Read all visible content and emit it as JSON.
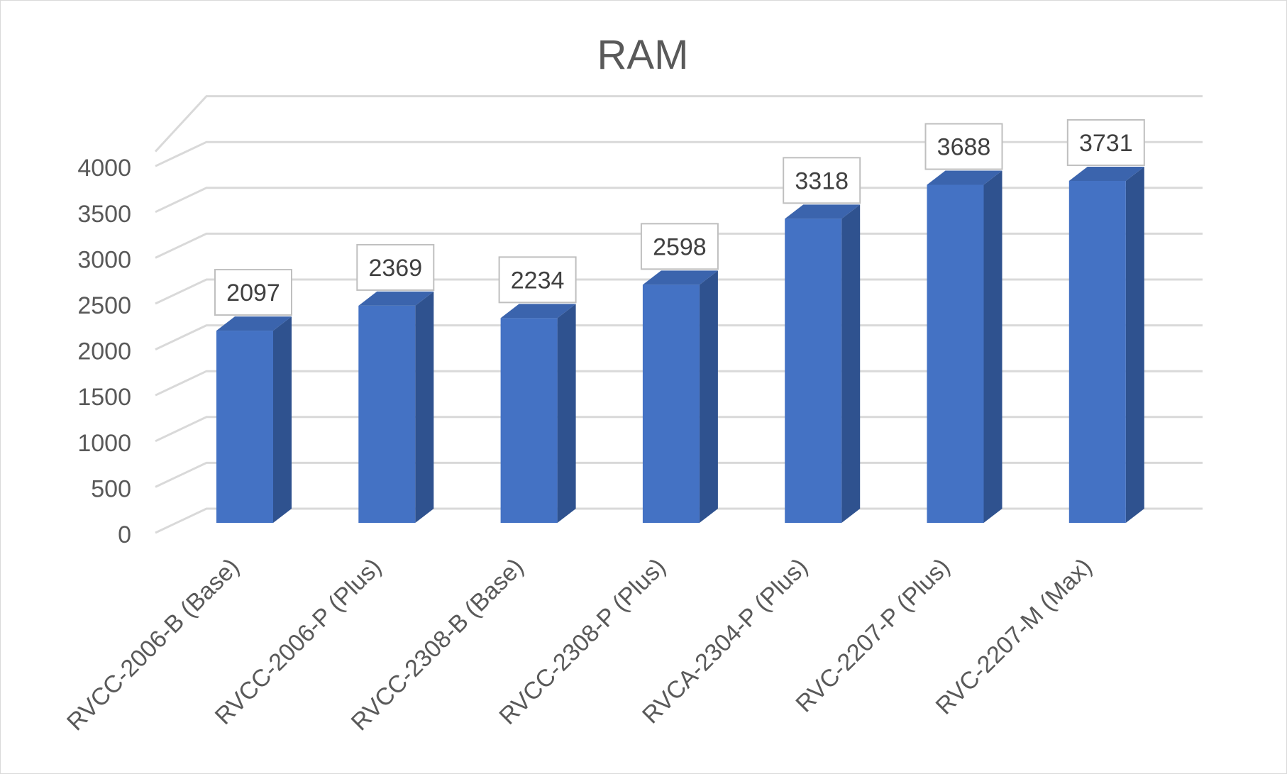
{
  "chart_data": {
    "type": "bar",
    "title": "RAM",
    "categories": [
      "RVCC-2006-B (Base)",
      "RVCC-2006-P (Plus)",
      "RVCC-2308-B (Base)",
      "RVCC-2308-P (Plus)",
      "RVCA-2304-P (Plus)",
      "RVC-2207-P (Plus)",
      "RVC-2207-M (Max)"
    ],
    "values": [
      2097,
      2369,
      2234,
      2598,
      3318,
      3688,
      3731
    ],
    "ylim": [
      0,
      4000
    ],
    "yticks": [
      0,
      500,
      1000,
      1500,
      2000,
      2500,
      3000,
      3500,
      4000
    ],
    "data_labels": true,
    "grid": true,
    "legend": "none",
    "style": "3d-column",
    "colors": {
      "bar_front": "#4472c4",
      "bar_side": "#2f528f",
      "bar_top": "#3b64ad"
    }
  }
}
